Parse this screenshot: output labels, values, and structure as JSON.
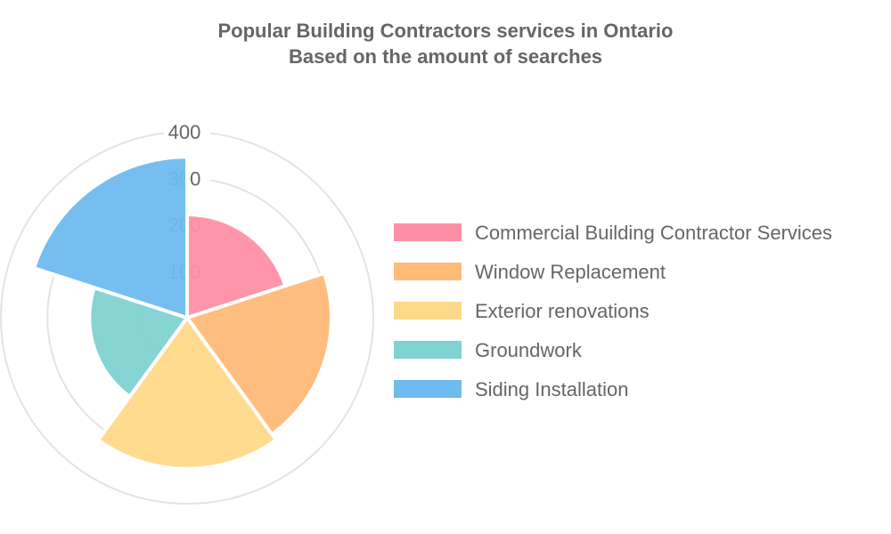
{
  "chart_data": {
    "type": "polarArea",
    "title": "Popular Building Contractors services in Ontario",
    "subtitle": "Based on the amount of searches",
    "categories": [
      "Commercial Building Contractor Services",
      "Window Replacement",
      "Exterior renovations",
      "Groundwork",
      "Siding Installation"
    ],
    "values": [
      222,
      310,
      325,
      210,
      346
    ],
    "colors": [
      "#ff8fa6",
      "#ffbb78",
      "#ffd98a",
      "#81d2d2",
      "#6fbbef"
    ],
    "r_ticks": [
      "100",
      "200",
      "300",
      "400"
    ],
    "r_tick_values": [
      100,
      200,
      300,
      400
    ],
    "rlim": [
      0,
      400
    ],
    "grid": true,
    "legend_position": "right"
  }
}
